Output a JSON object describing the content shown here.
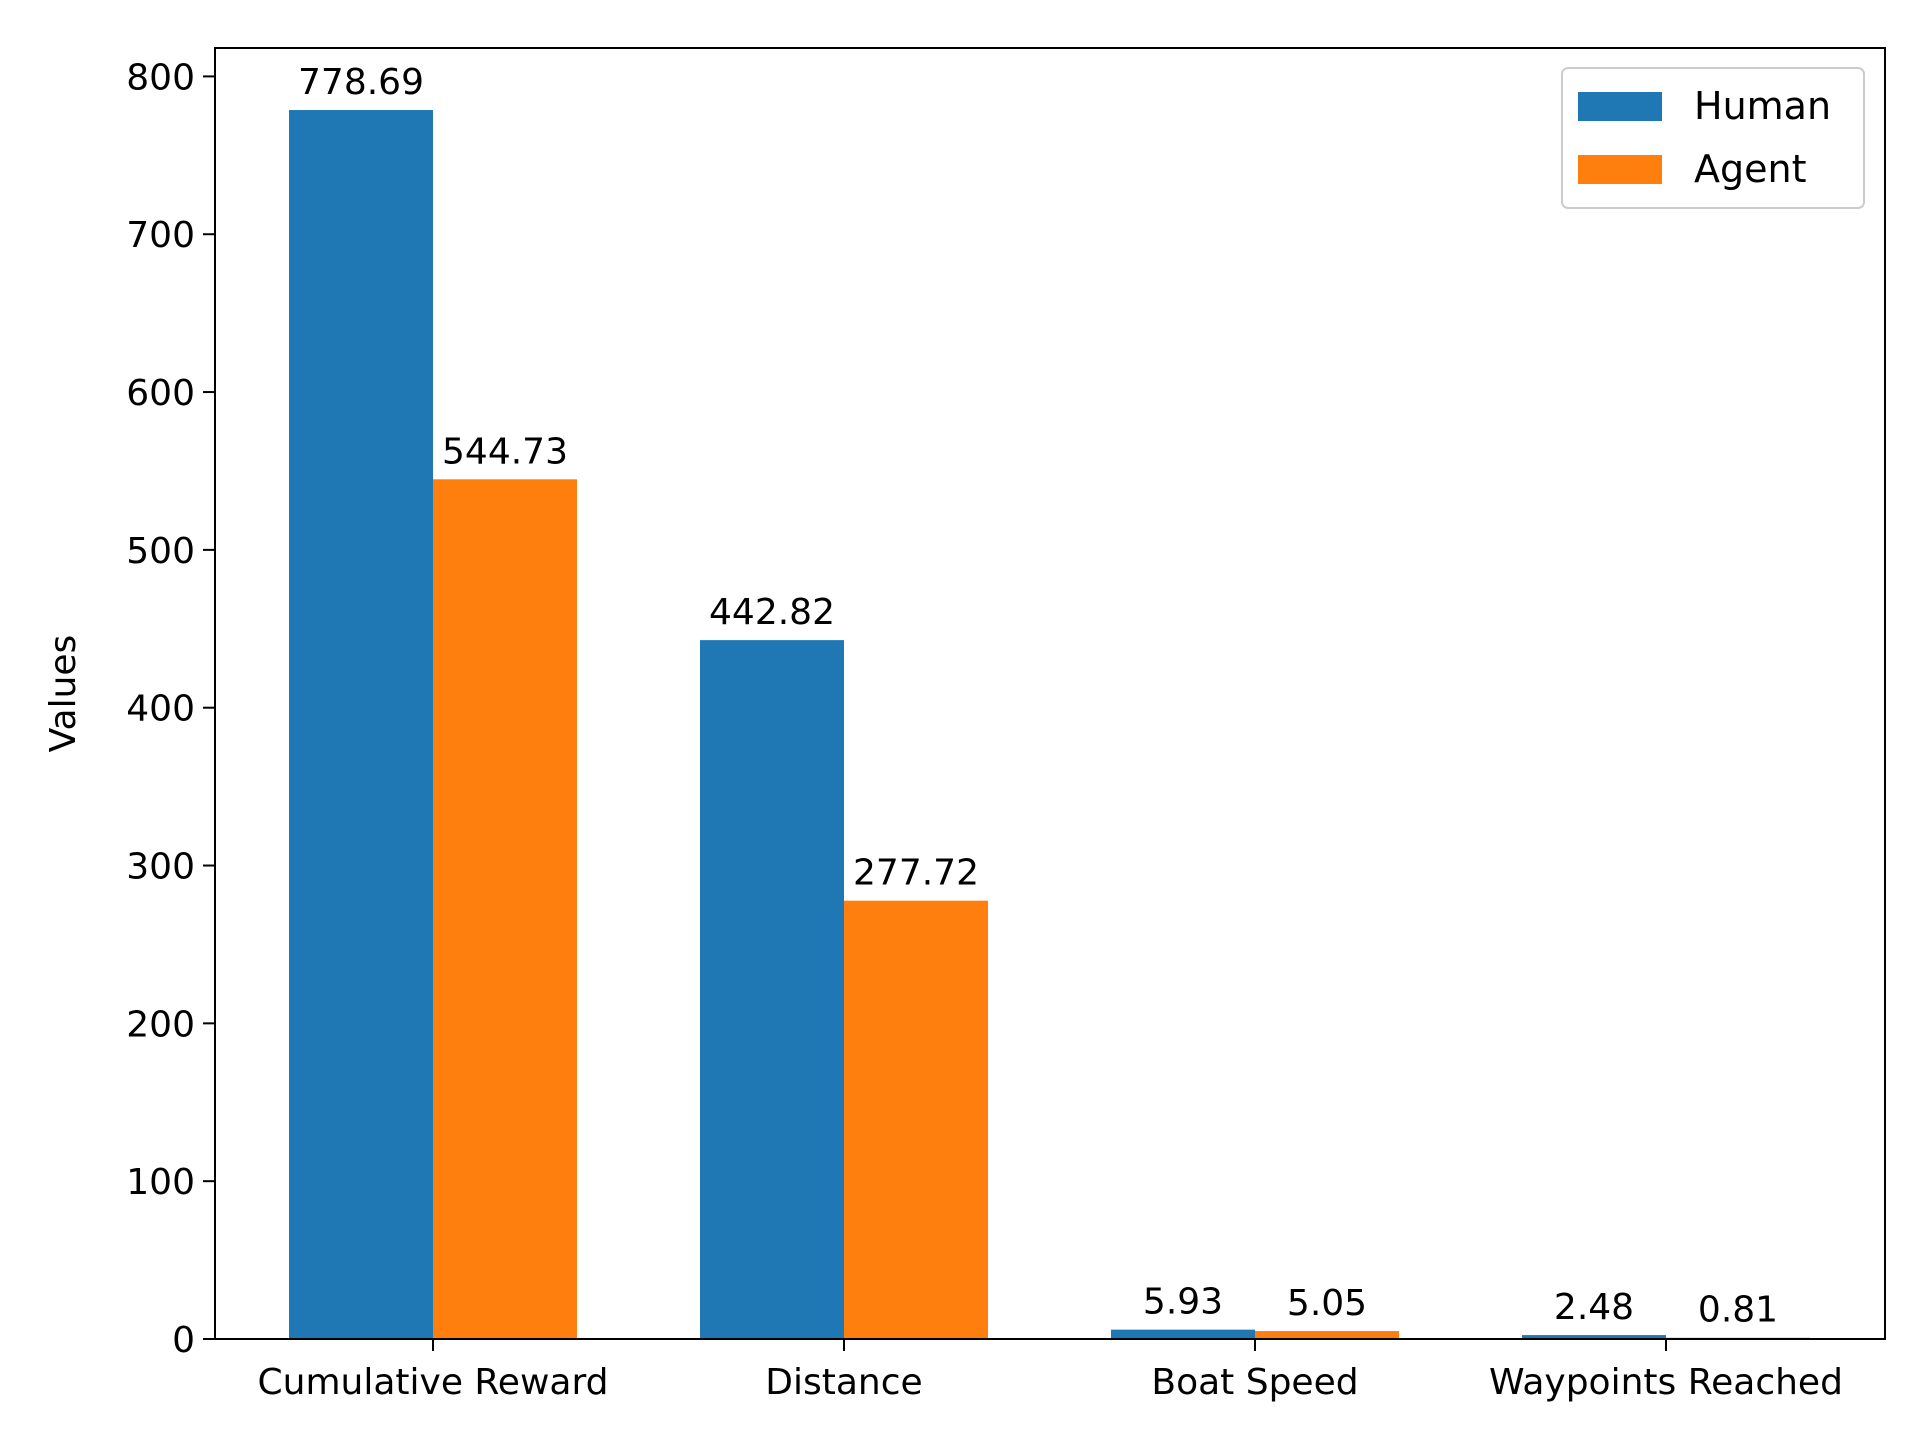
{
  "chart_data": {
    "type": "bar",
    "categories": [
      "Cumulative Reward",
      "Distance",
      "Boat Speed",
      "Waypoints Reached"
    ],
    "series": [
      {
        "name": "Human",
        "values": [
          778.69,
          442.82,
          5.93,
          2.48
        ],
        "labels": [
          "778.69",
          "442.82",
          "5.93",
          "2.48"
        ],
        "color": "#1f77b4"
      },
      {
        "name": "Agent",
        "values": [
          544.73,
          277.72,
          5.05,
          0.81
        ],
        "labels": [
          "544.73",
          "277.72",
          "5.05",
          "0.81"
        ],
        "color": "#ff7f0e"
      }
    ],
    "ylabel": "Values",
    "ylim": [
      0,
      818
    ],
    "yticks": [
      0,
      100,
      200,
      300,
      400,
      500,
      600,
      700,
      800
    ],
    "legend_position": "top-right",
    "grid": false
  }
}
